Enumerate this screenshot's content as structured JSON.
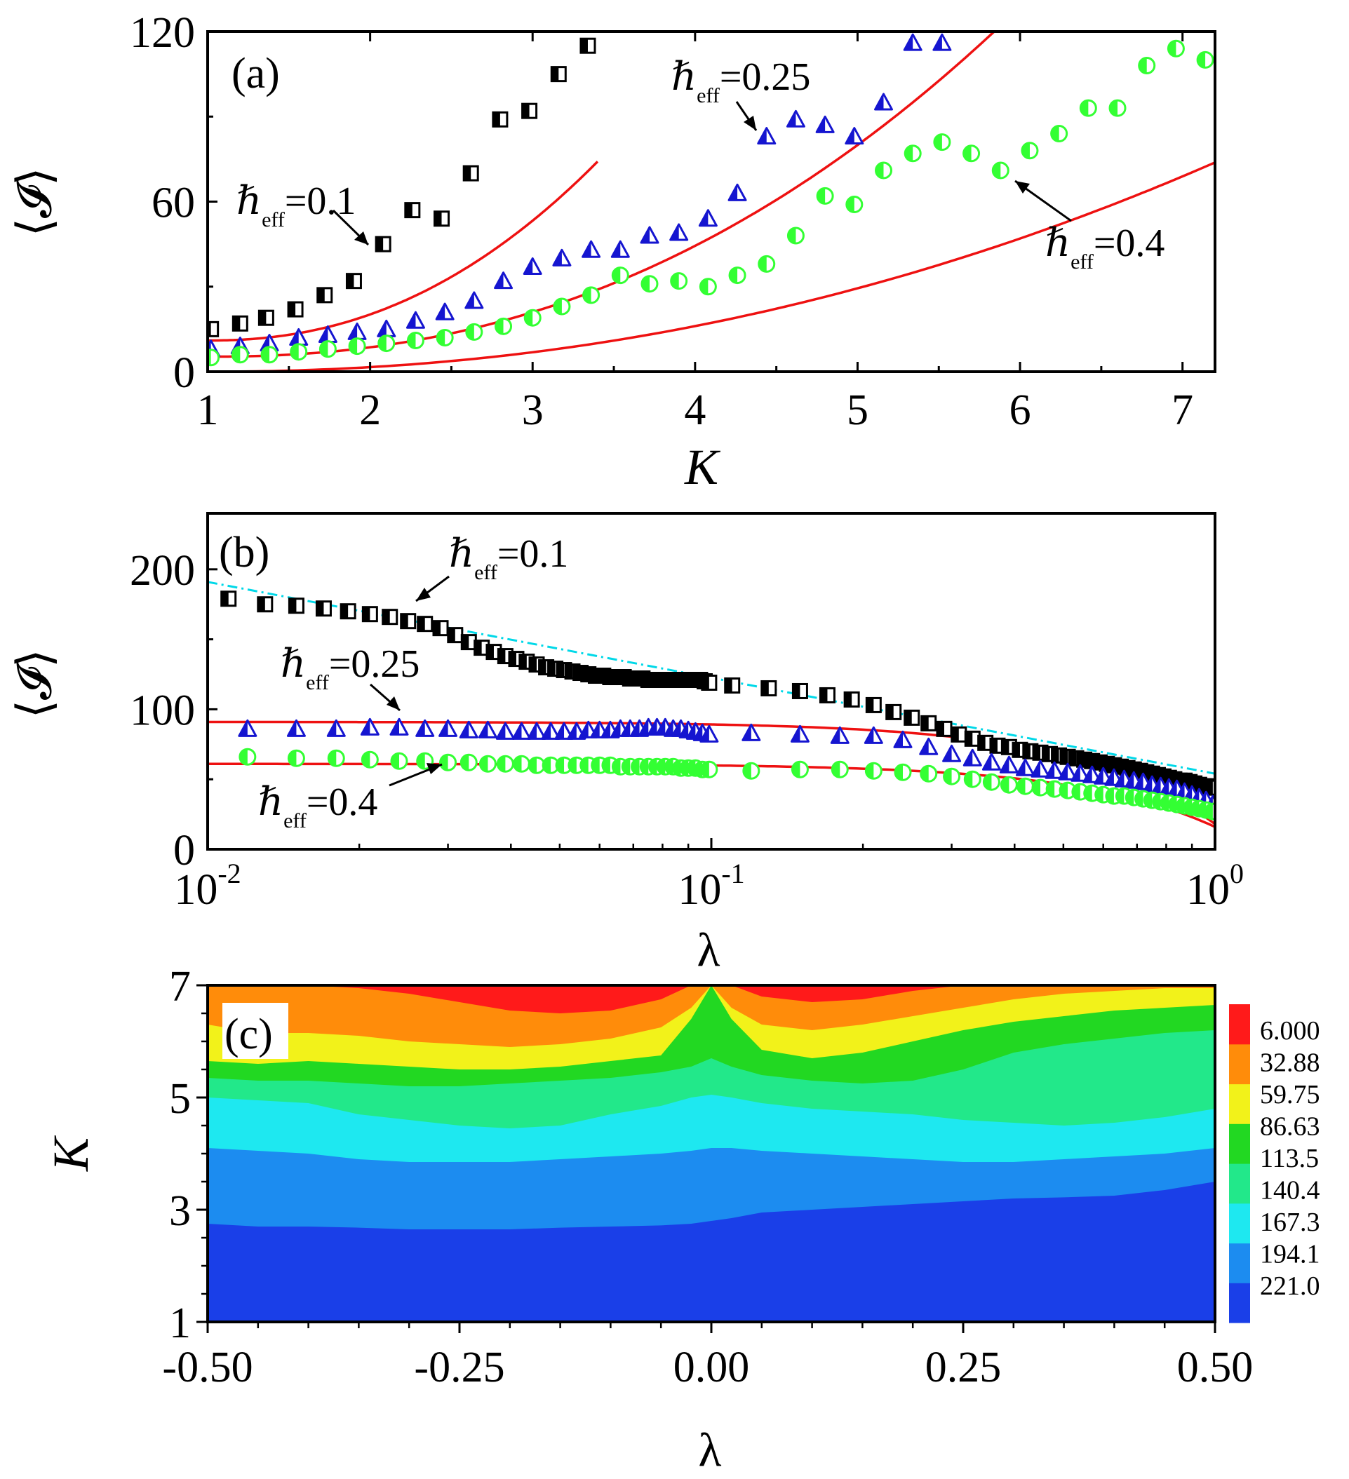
{
  "chart_data": [
    {
      "panel": "(a)",
      "type": "scatter",
      "xlabel": "K",
      "ylabel": "⟨𝓘⟩",
      "xlim": [
        1,
        7.2
      ],
      "ylim": [
        0,
        120
      ],
      "xticks": [
        "1",
        "2",
        "3",
        "4",
        "5",
        "6",
        "7"
      ],
      "yticks": [
        "0",
        "60",
        "120"
      ],
      "series": [
        {
          "name": "ℏ_eff=0.1",
          "label": "ℏ",
          "sub": "eff",
          "value": "=0.1",
          "marker": "square-half",
          "color": "#000000",
          "x": [
            1.02,
            1.2,
            1.36,
            1.54,
            1.72,
            1.9,
            2.08,
            2.26,
            2.44,
            2.62,
            2.8,
            2.98,
            3.16,
            3.34
          ],
          "y": [
            15,
            17,
            19,
            22,
            27,
            32,
            45,
            57,
            54,
            70,
            89,
            92,
            105,
            115
          ],
          "fit": {
            "a": 11,
            "b": 9.2,
            "exponent": 2.2,
            "x0": 1,
            "x1": 3.4
          }
        },
        {
          "name": "ℏ_eff=0.25",
          "label": "ℏ",
          "sub": "eff",
          "value": "=0.25",
          "marker": "triangle-half",
          "color": "#1515d0",
          "x": [
            1.02,
            1.2,
            1.38,
            1.56,
            1.74,
            1.92,
            2.1,
            2.28,
            2.46,
            2.64,
            2.82,
            3.0,
            3.18,
            3.36,
            3.54,
            3.72,
            3.9,
            4.08,
            4.26,
            4.44,
            4.62,
            4.8,
            4.98,
            5.16,
            5.34,
            5.52
          ],
          "y": [
            8,
            9,
            10,
            12,
            13,
            14,
            15,
            18,
            21,
            25,
            32,
            37,
            40,
            43,
            43,
            48,
            49,
            54,
            63,
            83,
            89,
            87,
            83,
            95,
            116,
            116
          ],
          "fit": {
            "a": 5.3,
            "b": 3.3,
            "exponent": 2.25,
            "x0": 1,
            "x1": 6.0
          }
        },
        {
          "name": "ℏ_eff=0.4",
          "label": "ℏ",
          "sub": "eff",
          "value": "=0.4",
          "marker": "circle-half",
          "color": "#33ff33",
          "x": [
            1.02,
            1.2,
            1.38,
            1.56,
            1.74,
            1.92,
            2.1,
            2.28,
            2.46,
            2.64,
            2.82,
            3.0,
            3.18,
            3.36,
            3.54,
            3.72,
            3.9,
            4.08,
            4.26,
            4.44,
            4.62,
            4.8,
            4.98,
            5.16,
            5.34,
            5.52,
            5.7,
            5.88,
            6.06,
            6.24,
            6.42,
            6.6,
            6.78,
            6.96,
            7.14
          ],
          "y": [
            5,
            6,
            6,
            7,
            8,
            9,
            10,
            11,
            12,
            14,
            16,
            19,
            23,
            27,
            34,
            31,
            32,
            30,
            34,
            38,
            48,
            62,
            59,
            71,
            77,
            81,
            77,
            71,
            78,
            84,
            93,
            93,
            108,
            114,
            110
          ],
          "fit": {
            "a": 0,
            "b": 1.6,
            "exponent": 2.1,
            "x0": 1.2,
            "x1": 7.2
          }
        }
      ]
    },
    {
      "panel": "(b)",
      "type": "scatter",
      "xscale": "log",
      "xlabel": "λ",
      "ylabel": "⟨𝓘⟩",
      "xlim": [
        0.01,
        1
      ],
      "ylim": [
        0,
        240
      ],
      "xticks": [
        {
          "base": "10",
          "exp": "-2"
        },
        {
          "base": "10",
          "exp": "-1"
        },
        {
          "base": "10",
          "exp": "0"
        }
      ],
      "yticks": [
        "0",
        "100",
        "200"
      ],
      "series": [
        {
          "name": "ℏ_eff=0.1",
          "label": "ℏ",
          "sub": "eff",
          "value": "=0.1",
          "marker": "square-half",
          "color": "#000000",
          "x": [
            0.011,
            0.013,
            0.015,
            0.017,
            0.019,
            0.021,
            0.023,
            0.025,
            0.027,
            0.029,
            0.031,
            0.033,
            0.035,
            0.037,
            0.039,
            0.041,
            0.043,
            0.045,
            0.047,
            0.049,
            0.051,
            0.053,
            0.055,
            0.057,
            0.059,
            0.061,
            0.063,
            0.065,
            0.067,
            0.069,
            0.071,
            0.073,
            0.075,
            0.077,
            0.079,
            0.081,
            0.083,
            0.085,
            0.087,
            0.089,
            0.091,
            0.093,
            0.095,
            0.097,
            0.099,
            0.11,
            0.13,
            0.15,
            0.17,
            0.19,
            0.21,
            0.23,
            0.25,
            0.27,
            0.29,
            0.31,
            0.33,
            0.35,
            0.37,
            0.39,
            0.41,
            0.43,
            0.45,
            0.47,
            0.49,
            0.51,
            0.53,
            0.55,
            0.57,
            0.59,
            0.61,
            0.63,
            0.65,
            0.67,
            0.69,
            0.71,
            0.73,
            0.75,
            0.77,
            0.79,
            0.81,
            0.83,
            0.85,
            0.87,
            0.89,
            0.91,
            0.93,
            0.95,
            0.97,
            0.99
          ],
          "y": [
            179,
            175,
            174,
            172,
            170,
            168,
            166,
            163,
            161,
            158,
            153,
            148,
            144,
            141,
            138,
            136,
            134,
            132,
            130,
            129,
            128,
            127,
            126,
            125,
            124,
            124,
            123,
            123,
            123,
            122,
            122,
            122,
            121,
            121,
            121,
            121,
            121,
            121,
            121,
            121,
            121,
            121,
            121,
            120,
            119,
            117,
            115,
            113,
            110,
            107,
            103,
            98,
            94,
            90,
            86,
            82,
            79,
            76,
            74,
            73,
            71,
            70,
            69,
            68,
            67,
            66,
            65,
            64,
            63,
            62,
            61,
            60,
            59,
            58,
            57,
            56,
            55,
            54,
            53,
            52,
            51,
            50,
            49,
            49,
            48,
            47,
            46,
            45,
            45,
            44
          ],
          "fit": {
            "style": "dashdot",
            "color": "#00d8e8",
            "y0": 191,
            "y1": 54
          }
        },
        {
          "name": "ℏ_eff=0.25",
          "label": "ℏ",
          "sub": "eff",
          "value": "=0.25",
          "marker": "triangle-half",
          "color": "#1515d0",
          "x": [
            0.012,
            0.015,
            0.018,
            0.021,
            0.024,
            0.027,
            0.03,
            0.033,
            0.036,
            0.039,
            0.042,
            0.045,
            0.048,
            0.051,
            0.054,
            0.057,
            0.06,
            0.063,
            0.066,
            0.069,
            0.072,
            0.075,
            0.078,
            0.081,
            0.084,
            0.087,
            0.09,
            0.093,
            0.096,
            0.099,
            0.12,
            0.15,
            0.18,
            0.21,
            0.24,
            0.27,
            0.3,
            0.33,
            0.36,
            0.39,
            0.42,
            0.45,
            0.48,
            0.51,
            0.54,
            0.57,
            0.6,
            0.63,
            0.66,
            0.69,
            0.72,
            0.75,
            0.78,
            0.81,
            0.84,
            0.87,
            0.9,
            0.93,
            0.96,
            0.99
          ],
          "y": [
            86,
            86,
            86,
            87,
            87,
            86,
            86,
            85,
            85,
            84,
            84,
            84,
            84,
            84,
            84,
            85,
            85,
            85,
            86,
            86,
            86,
            87,
            87,
            87,
            86,
            86,
            85,
            84,
            83,
            82,
            83,
            82,
            81,
            81,
            78,
            73,
            68,
            65,
            62,
            60,
            58,
            57,
            56,
            55,
            54,
            53,
            52,
            51,
            50,
            49,
            48,
            46,
            45,
            44,
            43,
            41,
            39,
            37,
            35,
            32
          ],
          "fit": {
            "style": "solid",
            "color": "#ee1111"
          }
        },
        {
          "name": "ℏ_eff=0.4",
          "label": "ℏ",
          "sub": "eff",
          "value": "=0.4",
          "marker": "circle-half",
          "color": "#33ff33",
          "x": [
            0.012,
            0.015,
            0.018,
            0.021,
            0.024,
            0.027,
            0.03,
            0.033,
            0.036,
            0.039,
            0.042,
            0.045,
            0.048,
            0.051,
            0.054,
            0.057,
            0.06,
            0.063,
            0.066,
            0.069,
            0.072,
            0.075,
            0.078,
            0.081,
            0.084,
            0.087,
            0.09,
            0.093,
            0.096,
            0.099,
            0.12,
            0.15,
            0.18,
            0.21,
            0.24,
            0.27,
            0.3,
            0.33,
            0.36,
            0.39,
            0.42,
            0.45,
            0.48,
            0.51,
            0.54,
            0.57,
            0.6,
            0.63,
            0.66,
            0.69,
            0.72,
            0.75,
            0.78,
            0.81,
            0.84,
            0.87,
            0.9,
            0.93,
            0.96,
            0.99
          ],
          "y": [
            66,
            65,
            65,
            64,
            63,
            63,
            62,
            62,
            61,
            61,
            61,
            60,
            60,
            60,
            60,
            60,
            60,
            60,
            59,
            59,
            59,
            59,
            59,
            59,
            59,
            58,
            58,
            58,
            57,
            57,
            56,
            57,
            57,
            56,
            55,
            54,
            52,
            50,
            48,
            46,
            45,
            44,
            43,
            42,
            41,
            40,
            39,
            38,
            38,
            37,
            36,
            35,
            34,
            33,
            32,
            31,
            30,
            29,
            28,
            27
          ],
          "fit": {
            "style": "solid",
            "color": "#ee1111"
          }
        }
      ]
    },
    {
      "panel": "(c)",
      "type": "heatmap",
      "xlabel": "λ",
      "ylabel": "K",
      "xlim": [
        -0.5,
        0.5
      ],
      "ylim": [
        1,
        7
      ],
      "xticks": [
        "-0.50",
        "-0.25",
        "0.00",
        "0.25",
        "0.50"
      ],
      "yticks": [
        "1",
        "3",
        "5",
        "7"
      ],
      "colorbar": {
        "levels": [
          "6.000",
          "32.88",
          "59.75",
          "86.63",
          "113.5",
          "140.4",
          "167.3",
          "194.1",
          "221.0"
        ],
        "colors": [
          "#1a3fe8",
          "#1c8cf0",
          "#1ee8f0",
          "#22e88a",
          "#22d822",
          "#f2f21a",
          "#ff8c0a",
          "#ff1a1a"
        ]
      },
      "contours": {
        "x": [
          -0.5,
          -0.45,
          -0.4,
          -0.35,
          -0.3,
          -0.25,
          -0.2,
          -0.15,
          -0.1,
          -0.05,
          -0.02,
          0.0,
          0.02,
          0.05,
          0.1,
          0.15,
          0.2,
          0.25,
          0.3,
          0.35,
          0.4,
          0.45,
          0.5
        ],
        "boundaries_K": [
          [
            2.75,
            2.7,
            2.7,
            2.68,
            2.65,
            2.65,
            2.65,
            2.68,
            2.7,
            2.72,
            2.75,
            2.8,
            2.85,
            2.95,
            3.0,
            3.05,
            3.1,
            3.15,
            3.2,
            3.22,
            3.25,
            3.35,
            3.5
          ],
          [
            4.1,
            4.05,
            4.0,
            3.9,
            3.85,
            3.85,
            3.85,
            3.9,
            3.95,
            4.0,
            4.05,
            4.1,
            4.1,
            4.05,
            4.0,
            3.95,
            3.9,
            3.85,
            3.85,
            3.9,
            3.95,
            4.0,
            4.1
          ],
          [
            5.0,
            4.95,
            4.9,
            4.7,
            4.6,
            4.5,
            4.45,
            4.5,
            4.7,
            4.85,
            5.0,
            5.05,
            5.0,
            4.9,
            4.8,
            4.75,
            4.7,
            4.6,
            4.55,
            4.5,
            4.55,
            4.65,
            4.8
          ],
          [
            5.35,
            5.3,
            5.3,
            5.25,
            5.2,
            5.2,
            5.25,
            5.3,
            5.35,
            5.45,
            5.55,
            5.7,
            5.55,
            5.4,
            5.3,
            5.25,
            5.3,
            5.5,
            5.8,
            5.95,
            6.05,
            6.15,
            6.2
          ],
          [
            5.65,
            5.6,
            5.65,
            5.6,
            5.55,
            5.5,
            5.5,
            5.55,
            5.65,
            5.75,
            6.4,
            7.0,
            6.4,
            5.85,
            5.7,
            5.8,
            6.0,
            6.2,
            6.35,
            6.45,
            6.55,
            6.6,
            6.65
          ],
          [
            6.3,
            6.15,
            6.15,
            6.1,
            6.0,
            5.95,
            5.9,
            5.95,
            6.05,
            6.25,
            6.6,
            7.0,
            6.6,
            6.3,
            6.2,
            6.3,
            6.45,
            6.6,
            6.75,
            6.85,
            6.9,
            6.95,
            6.95
          ],
          [
            7.0,
            7.0,
            7.0,
            6.95,
            6.85,
            6.7,
            6.55,
            6.5,
            6.55,
            6.75,
            7.0,
            7.0,
            7.0,
            6.8,
            6.7,
            6.75,
            6.9,
            7.0,
            7.0,
            7.0,
            7.0,
            7.0,
            7.0
          ]
        ],
        "fill_bands": [
          0,
          1,
          2,
          3,
          4,
          5,
          6,
          7
        ]
      }
    }
  ],
  "annotations": {
    "panel_a": {
      "label": "(a)"
    },
    "panel_b": {
      "label": "(b)"
    },
    "panel_c": {
      "label": "(c)"
    }
  },
  "colors": {
    "fit_line": "#ee1111",
    "dash_line": "#00d8e8",
    "frame": "#000000"
  }
}
